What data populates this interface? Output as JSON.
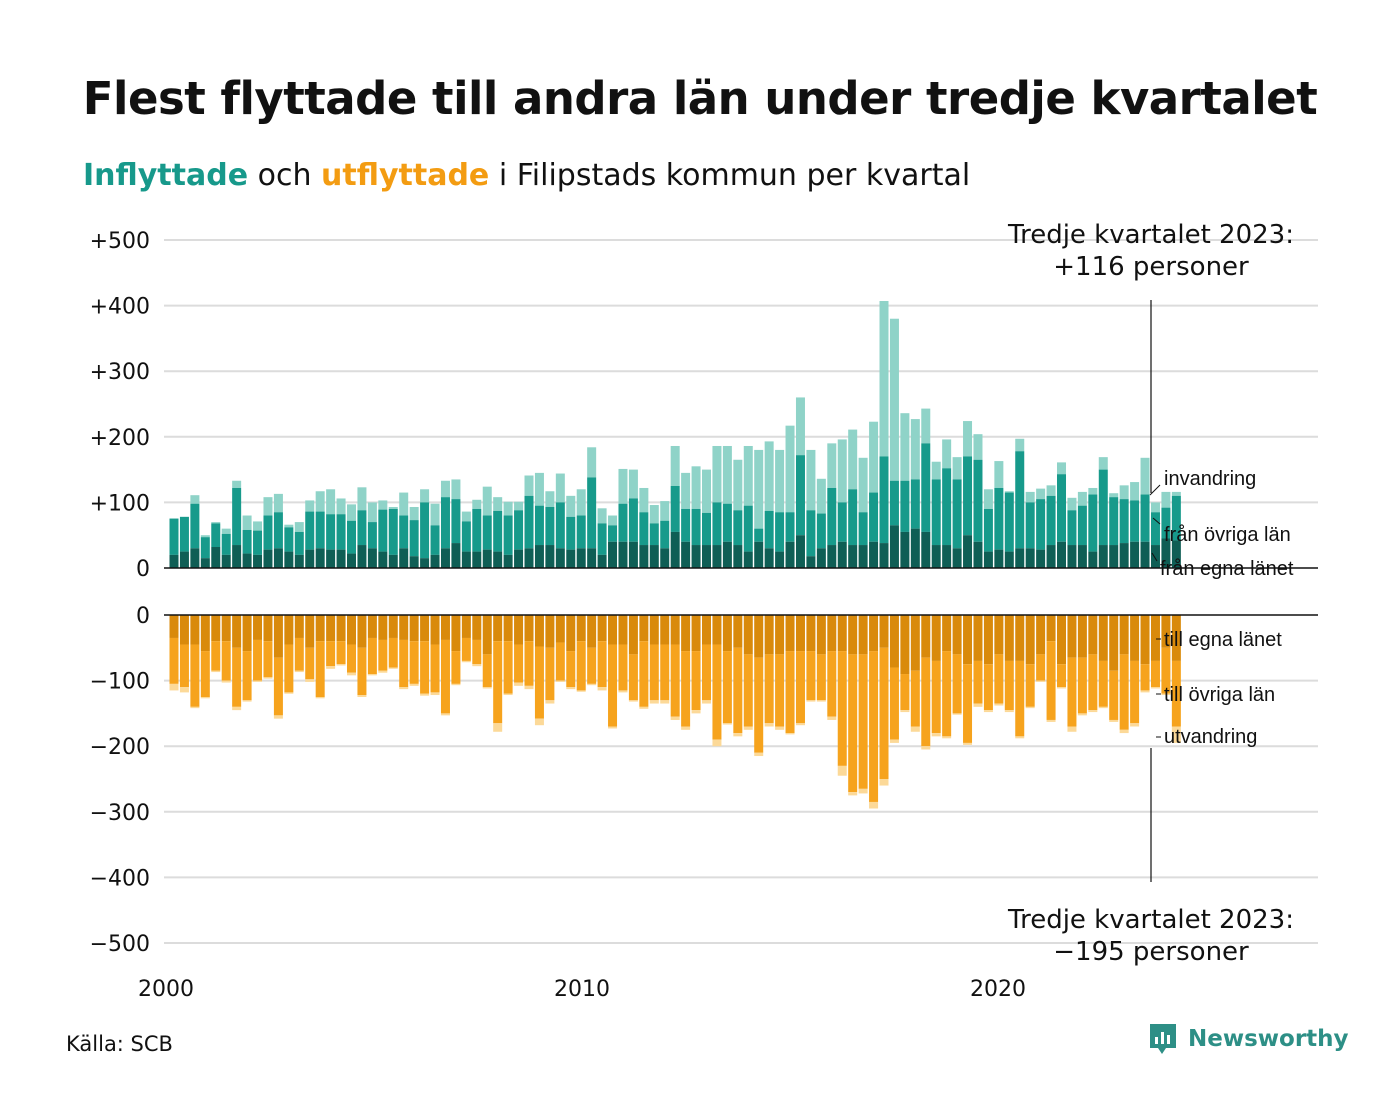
{
  "header": {
    "title": "Flest flyttade till andra län under tredje kvartalet",
    "subtitle_in": "Inflyttade",
    "subtitle_and": "och",
    "subtitle_out": "utflyttade",
    "subtitle_rest": "i Filipstads  kommun  per  kvartal"
  },
  "colors": {
    "in_egna": "#0f5e55",
    "in_ovriga": "#179a8b",
    "in_invandring": "#8fd3c8",
    "out_egna": "#d98a0b",
    "out_ovriga": "#f6a31d",
    "out_utvandring": "#fcd998"
  },
  "footer": {
    "source": "Källa: SCB",
    "brand": "Newsworthy"
  },
  "chart_data": {
    "type": "bar",
    "stacked": true,
    "x_start": "2000 Q1",
    "x_ticks": [
      "2000",
      "2010",
      "2020"
    ],
    "y_ticks_top": [
      "+500",
      "+400",
      "+300",
      "+200",
      "+100",
      "0"
    ],
    "y_ticks_bottom": [
      "0",
      "−100",
      "−200",
      "−300",
      "−400",
      "−500"
    ],
    "ylim_in": [
      0,
      500
    ],
    "ylim_out": [
      -500,
      0
    ],
    "grid": true,
    "series_labels_in": [
      "invandring",
      "från övriga län",
      "från egna länet"
    ],
    "series_labels_out": [
      "till egna länet",
      "till övriga län",
      "utvandring"
    ],
    "highlight": {
      "in": [
        "Tredje kvartalet 2023:",
        "+116 personer"
      ],
      "out": [
        "Tredje kvartalet 2023:",
        "−195 personer"
      ]
    },
    "in_totals": [
      76,
      78,
      111,
      50,
      70,
      60,
      133,
      80,
      71,
      108,
      113,
      66,
      70,
      103,
      117,
      120,
      106,
      97,
      123,
      100,
      103,
      93,
      115,
      93,
      120,
      98,
      133,
      135,
      86,
      104,
      124,
      108,
      101,
      101,
      141,
      145,
      117,
      144,
      110,
      120,
      184,
      91,
      80,
      151,
      150,
      122,
      96,
      102,
      186,
      145,
      155,
      150,
      186,
      186,
      165,
      186,
      180,
      193,
      180,
      217,
      260,
      180,
      136,
      190,
      196,
      211,
      168,
      223,
      407,
      380,
      236,
      227,
      243,
      162,
      196,
      169,
      224,
      204,
      120,
      163,
      117,
      197,
      116,
      121,
      126,
      161,
      107,
      116,
      122,
      169,
      114,
      126,
      131,
      168,
      100,
      116,
      116
    ],
    "in_egna": [
      20,
      25,
      30,
      15,
      32,
      20,
      35,
      22,
      20,
      28,
      30,
      25,
      20,
      28,
      30,
      28,
      28,
      22,
      35,
      30,
      25,
      20,
      30,
      18,
      15,
      20,
      30,
      38,
      25,
      25,
      28,
      25,
      20,
      28,
      30,
      35,
      35,
      30,
      28,
      30,
      30,
      20,
      40,
      40,
      40,
      35,
      35,
      30,
      55,
      40,
      35,
      35,
      35,
      40,
      35,
      25,
      40,
      30,
      25,
      40,
      50,
      18,
      30,
      35,
      40,
      35,
      35,
      40,
      38,
      65,
      55,
      60,
      55,
      35,
      35,
      30,
      50,
      40,
      25,
      28,
      25,
      30,
      30,
      28,
      35,
      40,
      35,
      35,
      25,
      35,
      35,
      38,
      40,
      40,
      35,
      45,
      42
    ],
    "in_ovriga": [
      75,
      78,
      98,
      47,
      68,
      52,
      122,
      58,
      57,
      80,
      85,
      62,
      55,
      86,
      86,
      82,
      82,
      72,
      88,
      70,
      89,
      90,
      80,
      73,
      100,
      65,
      108,
      105,
      71,
      90,
      80,
      87,
      80,
      88,
      110,
      95,
      93,
      100,
      78,
      80,
      138,
      68,
      65,
      98,
      106,
      85,
      68,
      72,
      125,
      90,
      90,
      84,
      100,
      98,
      88,
      95,
      60,
      87,
      85,
      85,
      172,
      88,
      83,
      122,
      100,
      120,
      85,
      115,
      170,
      133,
      133,
      135,
      190,
      135,
      152,
      135,
      170,
      165,
      90,
      122,
      115,
      178,
      100,
      105,
      110,
      143,
      88,
      95,
      112,
      150,
      108,
      105,
      103,
      112,
      85,
      92,
      110
    ],
    "out_egna": [
      35,
      45,
      45,
      55,
      40,
      40,
      50,
      55,
      38,
      40,
      65,
      45,
      35,
      50,
      40,
      40,
      40,
      45,
      50,
      35,
      38,
      35,
      38,
      40,
      40,
      45,
      38,
      55,
      35,
      38,
      60,
      40,
      40,
      45,
      40,
      48,
      50,
      42,
      55,
      40,
      50,
      40,
      45,
      45,
      60,
      40,
      45,
      45,
      45,
      55,
      55,
      45,
      45,
      55,
      50,
      60,
      65,
      60,
      60,
      55,
      55,
      55,
      60,
      55,
      55,
      60,
      60,
      55,
      50,
      80,
      90,
      85,
      65,
      70,
      55,
      60,
      75,
      70,
      75,
      60,
      70,
      70,
      75,
      60,
      40,
      75,
      65,
      65,
      60,
      70,
      85,
      60,
      70,
      75,
      70,
      50,
      70
    ],
    "out_ovriga": [
      105,
      110,
      140,
      125,
      85,
      100,
      140,
      130,
      100,
      95,
      153,
      118,
      85,
      98,
      125,
      78,
      75,
      88,
      122,
      90,
      85,
      80,
      110,
      105,
      120,
      118,
      150,
      105,
      70,
      75,
      110,
      165,
      120,
      103,
      108,
      158,
      130,
      100,
      110,
      115,
      105,
      110,
      170,
      115,
      130,
      140,
      130,
      130,
      155,
      170,
      145,
      130,
      190,
      165,
      180,
      170,
      210,
      165,
      170,
      180,
      165,
      130,
      130,
      155,
      230,
      270,
      265,
      285,
      250,
      190,
      145,
      170,
      200,
      180,
      185,
      150,
      195,
      135,
      145,
      135,
      145,
      185,
      140,
      100,
      160,
      110,
      170,
      150,
      145,
      140,
      160,
      175,
      165,
      115,
      110,
      120,
      170
    ],
    "out_utv": [
      115,
      118,
      142,
      127,
      87,
      103,
      145,
      132,
      102,
      97,
      158,
      120,
      87,
      102,
      127,
      82,
      77,
      92,
      125,
      92,
      88,
      82,
      113,
      108,
      123,
      122,
      153,
      107,
      72,
      78,
      112,
      178,
      122,
      108,
      113,
      168,
      135,
      102,
      113,
      117,
      107,
      115,
      173,
      118,
      132,
      143,
      135,
      135,
      160,
      175,
      150,
      135,
      200,
      167,
      185,
      175,
      215,
      170,
      175,
      182,
      168,
      132,
      132,
      160,
      245,
      275,
      272,
      295,
      260,
      195,
      148,
      178,
      205,
      185,
      188,
      152,
      198,
      140,
      148,
      138,
      148,
      188,
      142,
      102,
      163,
      112,
      178,
      153,
      148,
      142,
      163,
      180,
      170,
      118,
      112,
      122,
      195
    ]
  }
}
